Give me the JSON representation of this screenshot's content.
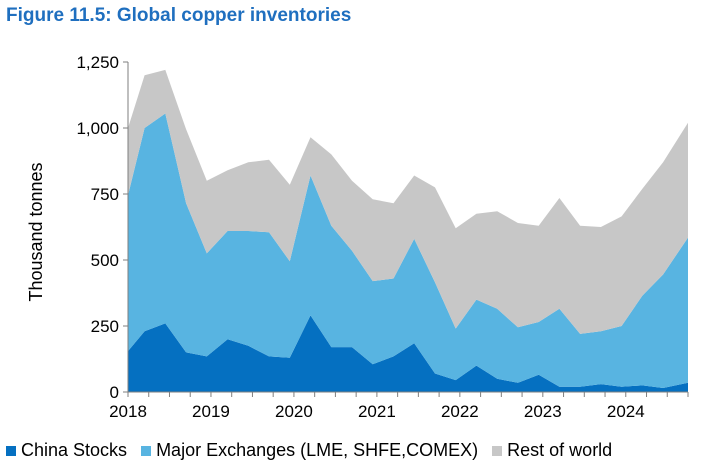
{
  "figure_title": "Figure 11.5: Global copper inventories",
  "colors": {
    "title": "#1f6fbf",
    "china": "#0570c1",
    "exchanges": "#58b4e1",
    "rest": "#c7c7c7"
  },
  "chart_data": {
    "type": "area",
    "stacked": true,
    "title": "Figure 11.5: Global copper inventories",
    "xlabel": "",
    "ylabel": "Thousand tonnes",
    "xlim": [
      2018,
      2024.75
    ],
    "ylim": [
      0,
      1250
    ],
    "yticks": [
      0,
      250,
      500,
      750,
      1000,
      1250
    ],
    "ytick_labels": [
      "0",
      "250",
      "500",
      "750",
      "1,000",
      "1,250"
    ],
    "xticks": [
      2018,
      2019,
      2020,
      2021,
      2022,
      2023,
      2024
    ],
    "xtick_labels": [
      "2018",
      "2019",
      "2020",
      "2021",
      "2022",
      "2023",
      "2024"
    ],
    "grid": false,
    "legend_position": "bottom",
    "x": [
      2018.0,
      2018.2,
      2018.45,
      2018.7,
      2018.95,
      2019.2,
      2019.45,
      2019.7,
      2019.95,
      2020.2,
      2020.45,
      2020.7,
      2020.95,
      2021.2,
      2021.45,
      2021.7,
      2021.95,
      2022.2,
      2022.45,
      2022.7,
      2022.95,
      2023.2,
      2023.45,
      2023.7,
      2023.95,
      2024.2,
      2024.45,
      2024.75
    ],
    "series": [
      {
        "name": "China Stocks",
        "values": [
          155,
          230,
          260,
          150,
          135,
          200,
          175,
          135,
          130,
          290,
          170,
          170,
          105,
          135,
          185,
          70,
          45,
          100,
          50,
          35,
          65,
          20,
          20,
          30,
          20,
          25,
          15,
          35
        ]
      },
      {
        "name": "Major Exchanges (LME, SHFE,COMEX)",
        "values": [
          590,
          770,
          795,
          565,
          390,
          410,
          435,
          470,
          365,
          530,
          460,
          365,
          315,
          295,
          395,
          345,
          195,
          250,
          265,
          210,
          200,
          295,
          200,
          200,
          230,
          340,
          430,
          550
        ]
      },
      {
        "name": "Rest of world",
        "values": [
          255,
          200,
          165,
          280,
          275,
          230,
          260,
          275,
          290,
          145,
          270,
          265,
          310,
          285,
          240,
          360,
          380,
          325,
          370,
          395,
          365,
          420,
          410,
          395,
          415,
          405,
          425,
          435
        ]
      }
    ]
  }
}
